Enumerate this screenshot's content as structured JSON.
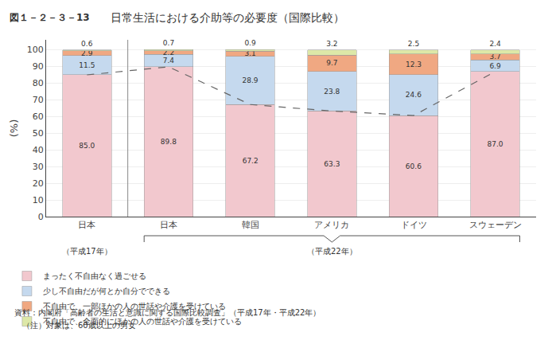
{
  "chart_data": {
    "type": "bar",
    "stacked": true,
    "title": "日常生活における介助等の必要度（国際比較）",
    "annotations": [
      "図１－２－３－13",
      "（平成17年）",
      "（平成22年）",
      "資料：内閣府「高齢者の生活と意識に関する国際比較調査」（平成17年・平成22年）",
      "　（注）対象は、60歳以上の男女"
    ],
    "ylabel": "(%)",
    "categories": [
      "日本",
      "日本",
      "韓国",
      "アメリカ",
      "ドイツ",
      "スウェーデン"
    ],
    "series": [
      {
        "name": "まったく不自由なく過ごせる",
        "color": "#f2c8ce",
        "values": [
          85.0,
          89.8,
          67.2,
          63.3,
          60.6,
          87.0
        ],
        "value_labels": [
          "85.0",
          "89.8",
          "67.2",
          "63.3",
          "60.6",
          "87.0"
        ]
      },
      {
        "name": "少し不自由だが何とか自分でできる",
        "color": "#c5d9ee",
        "values": [
          11.5,
          7.4,
          28.9,
          23.8,
          24.6,
          6.9
        ],
        "value_labels": [
          "11.5",
          "7.4",
          "28.9",
          "23.8",
          "24.6",
          "6.9"
        ]
      },
      {
        "name": "不自由で、一部ほかの人の世話や介護を受けている",
        "color": "#f0a882",
        "values": [
          2.9,
          2.2,
          3.1,
          9.7,
          12.3,
          3.7
        ],
        "value_labels": [
          "2.9",
          "2.2",
          "3.1",
          "9.7",
          "12.3",
          "3.7"
        ]
      },
      {
        "name": "不自由で、全面的にほかの人の世話や介護を受けている",
        "color": "#dde8a8",
        "values": [
          0.6,
          0.7,
          0.9,
          3.2,
          2.5,
          2.4
        ],
        "value_labels": [
          "0.6",
          "0.7",
          "0.9",
          "3.2",
          "2.5",
          "2.4"
        ]
      },
      {
        "type": "line",
        "line_style": "dashed",
        "color": "#666666",
        "values": [
          85.0,
          89.8,
          67.2,
          63.3,
          60.6,
          87.0
        ]
      }
    ],
    "ylim": [
      0,
      106
    ],
    "yticks": [
      0,
      10,
      20,
      30,
      40,
      50,
      60,
      70,
      80,
      90,
      100
    ],
    "grid": true,
    "data_labels": true,
    "legend": "bottom"
  }
}
